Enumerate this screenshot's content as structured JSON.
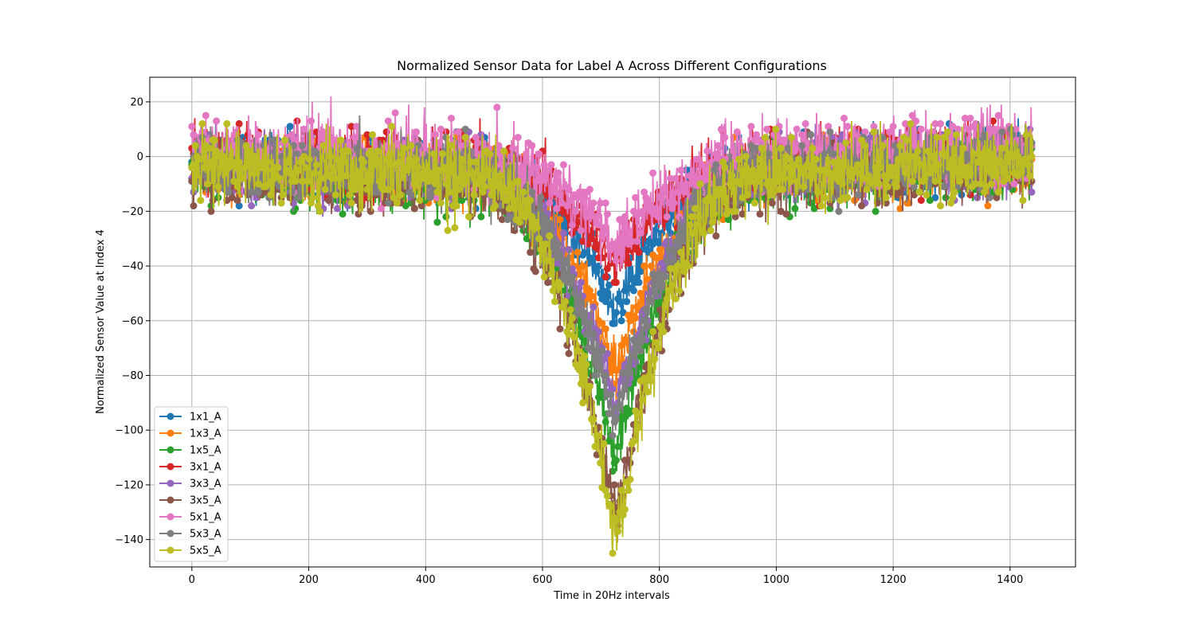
{
  "chart_data": {
    "type": "line",
    "title": "Normalized Sensor Data for Label A Across Different Configurations",
    "xlabel": "Time in 20Hz intervals",
    "ylabel": "Normalized Sensor Value at Index 4",
    "xlim": [
      -72,
      1512
    ],
    "ylim": [
      -150,
      29
    ],
    "xticks": [
      0,
      200,
      400,
      600,
      800,
      1000,
      1200,
      1400
    ],
    "yticks": [
      20,
      0,
      -20,
      -40,
      -60,
      -80,
      -100,
      -120,
      -140
    ],
    "grid": true,
    "legend_position": "lower-left",
    "markers": "circle",
    "n_points": 1440,
    "series": [
      {
        "name": "1x1_A",
        "color": "#1f77b4",
        "depth": 50,
        "baseline": -2,
        "noise": 6
      },
      {
        "name": "1x3_A",
        "color": "#ff7f0e",
        "depth": 70,
        "baseline": -4,
        "noise": 6
      },
      {
        "name": "1x5_A",
        "color": "#2ca02c",
        "depth": 100,
        "baseline": -6,
        "noise": 6
      },
      {
        "name": "3x1_A",
        "color": "#d62728",
        "depth": 35,
        "baseline": -1,
        "noise": 6
      },
      {
        "name": "3x3_A",
        "color": "#9467bd",
        "depth": 85,
        "baseline": -3,
        "noise": 6
      },
      {
        "name": "3x5_A",
        "color": "#8c564b",
        "depth": 125,
        "baseline": -5,
        "noise": 6
      },
      {
        "name": "5x1_A",
        "color": "#e377c2",
        "depth": 32,
        "baseline": 2,
        "noise": 7
      },
      {
        "name": "5x3_A",
        "color": "#7f7f7f",
        "depth": 90,
        "baseline": -3,
        "noise": 6
      },
      {
        "name": "5x5_A",
        "color": "#bcbd22",
        "depth": 130,
        "baseline": -4,
        "noise": 7
      }
    ]
  }
}
